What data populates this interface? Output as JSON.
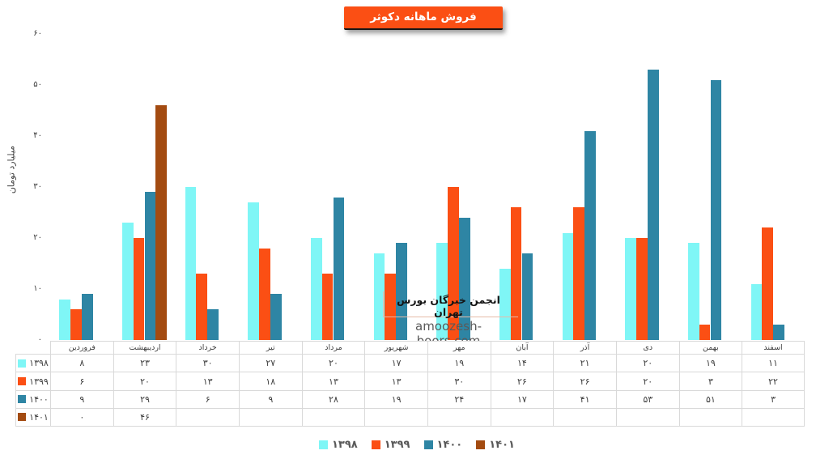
{
  "title": "فروش ماهانه دکوثر",
  "colors": {
    "series_1398": "#7FF6F6",
    "series_1399": "#FB4F14",
    "series_1400": "#2E85A4",
    "series_1401": "#A34B11",
    "title_bg": "#FB4F14",
    "table_border": "#D9D9D9",
    "axis_text": "#404040",
    "legend_text": "#595959"
  },
  "chart_data": {
    "type": "bar",
    "title": "فروش ماهانه دکوثر",
    "xlabel": "",
    "ylabel": "میلیارد تومان",
    "categories": [
      "فروردین",
      "اردیبهشت",
      "خرداد",
      "تیر",
      "مرداد",
      "شهریور",
      "مهر",
      "آبان",
      "آذر",
      "دی",
      "بهمن",
      "اسفند"
    ],
    "series": [
      {
        "name": "۱۳۹۸",
        "color": "#7FF6F6",
        "values": [
          8,
          23,
          30,
          27,
          20,
          17,
          19,
          14,
          21,
          20,
          19,
          11
        ]
      },
      {
        "name": "۱۳۹۹",
        "color": "#FB4F14",
        "values": [
          6,
          20,
          13,
          18,
          13,
          13,
          30,
          26,
          26,
          20,
          3,
          22
        ]
      },
      {
        "name": "۱۴۰۰",
        "color": "#2E85A4",
        "values": [
          9,
          29,
          6,
          9,
          28,
          19,
          24,
          17,
          41,
          53,
          51,
          3
        ]
      },
      {
        "name": "۱۴۰۱",
        "color": "#A34B11",
        "values": [
          0,
          46,
          null,
          null,
          null,
          null,
          null,
          null,
          null,
          null,
          null,
          null
        ]
      }
    ],
    "ylim": [
      0,
      60
    ],
    "y_tick_values": [
      60,
      50,
      40,
      30,
      20,
      10,
      0
    ],
    "y_tick_labels": [
      "۶۰",
      "۵۰",
      "۴۰",
      "۳۰",
      "۲۰",
      "۱۰",
      "۰"
    ],
    "grid": false,
    "legend_position": "bottom",
    "data_table_shown": true
  },
  "table": {
    "columns": [
      "فروردین",
      "اردیبهشت",
      "خرداد",
      "تیر",
      "مرداد",
      "شهریور",
      "مهر",
      "آبان",
      "آذر",
      "دی",
      "بهمن",
      "اسفند"
    ],
    "rows": [
      {
        "label": "۱۳۹۸",
        "color": "#7FF6F6",
        "cells": [
          "۸",
          "۲۳",
          "۳۰",
          "۲۷",
          "۲۰",
          "۱۷",
          "۱۹",
          "۱۴",
          "۲۱",
          "۲۰",
          "۱۹",
          "۱۱"
        ]
      },
      {
        "label": "۱۳۹۹",
        "color": "#FB4F14",
        "cells": [
          "۶",
          "۲۰",
          "۱۳",
          "۱۸",
          "۱۳",
          "۱۳",
          "۳۰",
          "۲۶",
          "۲۶",
          "۲۰",
          "۳",
          "۲۲"
        ]
      },
      {
        "label": "۱۴۰۰",
        "color": "#2E85A4",
        "cells": [
          "۹",
          "۲۹",
          "۶",
          "۹",
          "۲۸",
          "۱۹",
          "۲۴",
          "۱۷",
          "۴۱",
          "۵۳",
          "۵۱",
          "۳"
        ]
      },
      {
        "label": "۱۴۰۱",
        "color": "#A34B11",
        "cells": [
          "۰",
          "۴۶",
          "",
          "",
          "",
          "",
          "",
          "",
          "",
          "",
          "",
          ""
        ]
      }
    ]
  },
  "legend": {
    "items": [
      {
        "label": "۱۳۹۸",
        "color": "#7FF6F6"
      },
      {
        "label": "۱۳۹۹",
        "color": "#FB4F14"
      },
      {
        "label": "۱۴۰۰",
        "color": "#2E85A4"
      },
      {
        "label": "۱۴۰۱",
        "color": "#A34B11"
      }
    ]
  },
  "watermark": {
    "line1": "انجمن خبرگان بورس تهران",
    "line2": "amoozesh-boors.com"
  }
}
